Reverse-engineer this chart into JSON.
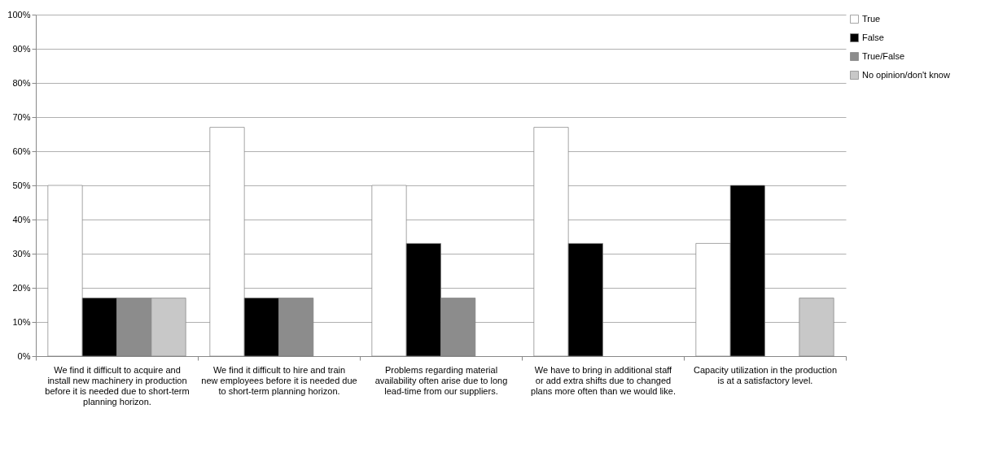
{
  "chart_data": {
    "type": "bar",
    "categories": [
      "We find it difficult to acquire and install new machinery in production before it is needed due to short-term planning horizon.",
      "We find it difficult to hire and train new employees before it is needed due to short-term planning horizon.",
      "Problems regarding material availability often arise due to long lead-time from our suppliers.",
      "We have to bring in additional staff or add extra shifts due to changed plans more often than we would like.",
      "Capacity utilization in the production is at a satisfactory level."
    ],
    "series": [
      {
        "name": "True",
        "color": "#ffffff",
        "values": [
          50,
          67,
          50,
          67,
          33
        ]
      },
      {
        "name": "False",
        "color": "#000000",
        "values": [
          17,
          17,
          33,
          33,
          50
        ]
      },
      {
        "name": "True/False",
        "color": "#8c8c8c",
        "values": [
          17,
          17,
          17,
          null,
          null
        ]
      },
      {
        "name": "No opinion/don't know",
        "color": "#c8c8c8",
        "values": [
          17,
          null,
          null,
          null,
          17
        ]
      }
    ],
    "ylim": [
      0,
      100
    ],
    "yticks": [
      {
        "value": 0,
        "label": "0%"
      },
      {
        "value": 10,
        "label": "10%"
      },
      {
        "value": 20,
        "label": "20%"
      },
      {
        "value": 30,
        "label": "30%"
      },
      {
        "value": 40,
        "label": "40%"
      },
      {
        "value": 50,
        "label": "50%"
      },
      {
        "value": 60,
        "label": "60%"
      },
      {
        "value": 70,
        "label": "70%"
      },
      {
        "value": 80,
        "label": "80%"
      },
      {
        "value": 90,
        "label": "90%"
      },
      {
        "value": 100,
        "label": "100%"
      }
    ],
    "grid": "y",
    "legend": "right"
  }
}
